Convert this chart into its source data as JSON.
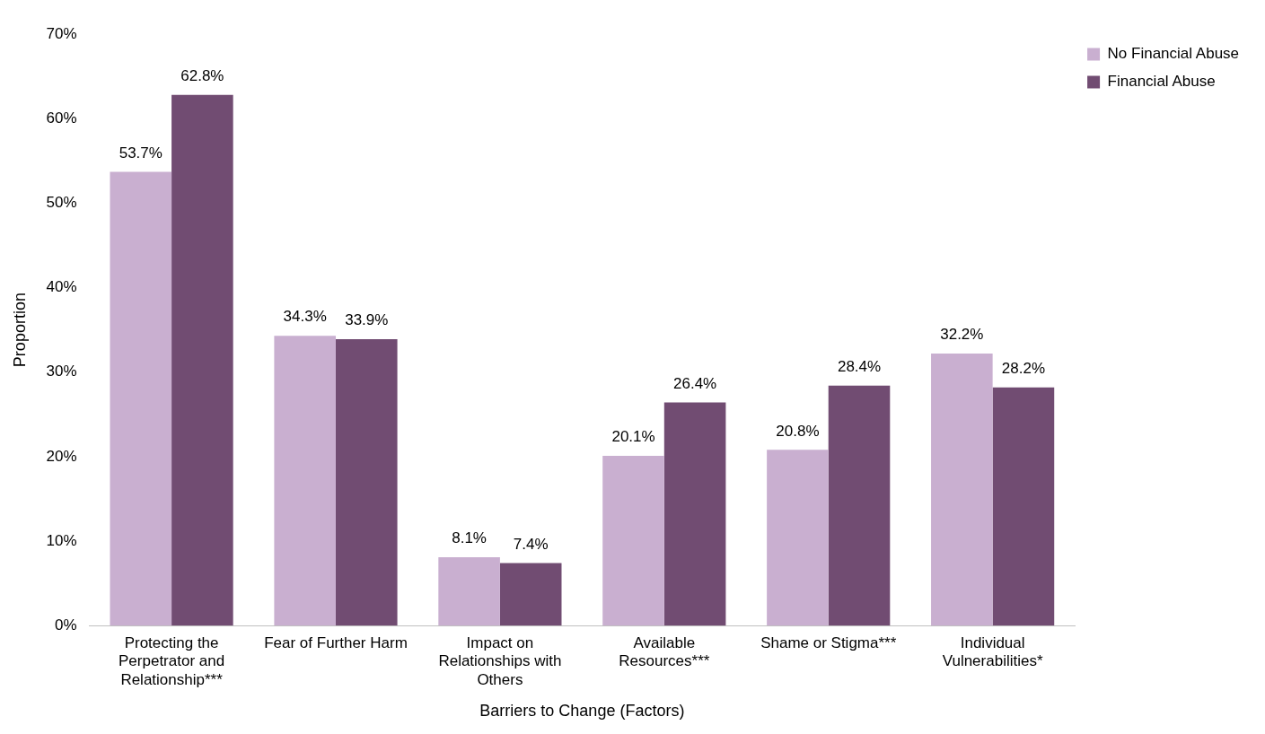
{
  "chart_data": {
    "type": "bar",
    "xlabel": "Barriers to Change (Factors)",
    "ylabel": "Proportion",
    "categories": [
      "Protecting the Perpetrator and Relationship***",
      "Fear of Further Harm",
      "Impact on Relationships with Others",
      "Available Resources***",
      "Shame or Stigma***",
      "Individual Vulnerabilities*"
    ],
    "series": [
      {
        "name": "No Financial Abuse",
        "color": "#c9afd0",
        "values": [
          53.7,
          34.3,
          8.1,
          20.1,
          20.8,
          32.2
        ],
        "value_labels": [
          "53.7%",
          "34.3%",
          "8.1%",
          "20.1%",
          "20.8%",
          "32.2%"
        ]
      },
      {
        "name": "Financial Abuse",
        "color": "#714c72",
        "values": [
          62.8,
          33.9,
          7.4,
          26.4,
          28.4,
          28.2
        ],
        "value_labels": [
          "62.8%",
          "33.9%",
          "7.4%",
          "26.4%",
          "28.4%",
          "28.2%"
        ]
      }
    ],
    "ylim": [
      0,
      70
    ],
    "yticks": [
      {
        "value": 0,
        "label": "0%"
      },
      {
        "value": 10,
        "label": "10%"
      },
      {
        "value": 20,
        "label": "20%"
      },
      {
        "value": 30,
        "label": "30%"
      },
      {
        "value": 40,
        "label": "40%"
      },
      {
        "value": 50,
        "label": "50%"
      },
      {
        "value": 60,
        "label": "60%"
      },
      {
        "value": 70,
        "label": "70%"
      }
    ],
    "grid": false,
    "legend": "top right"
  }
}
